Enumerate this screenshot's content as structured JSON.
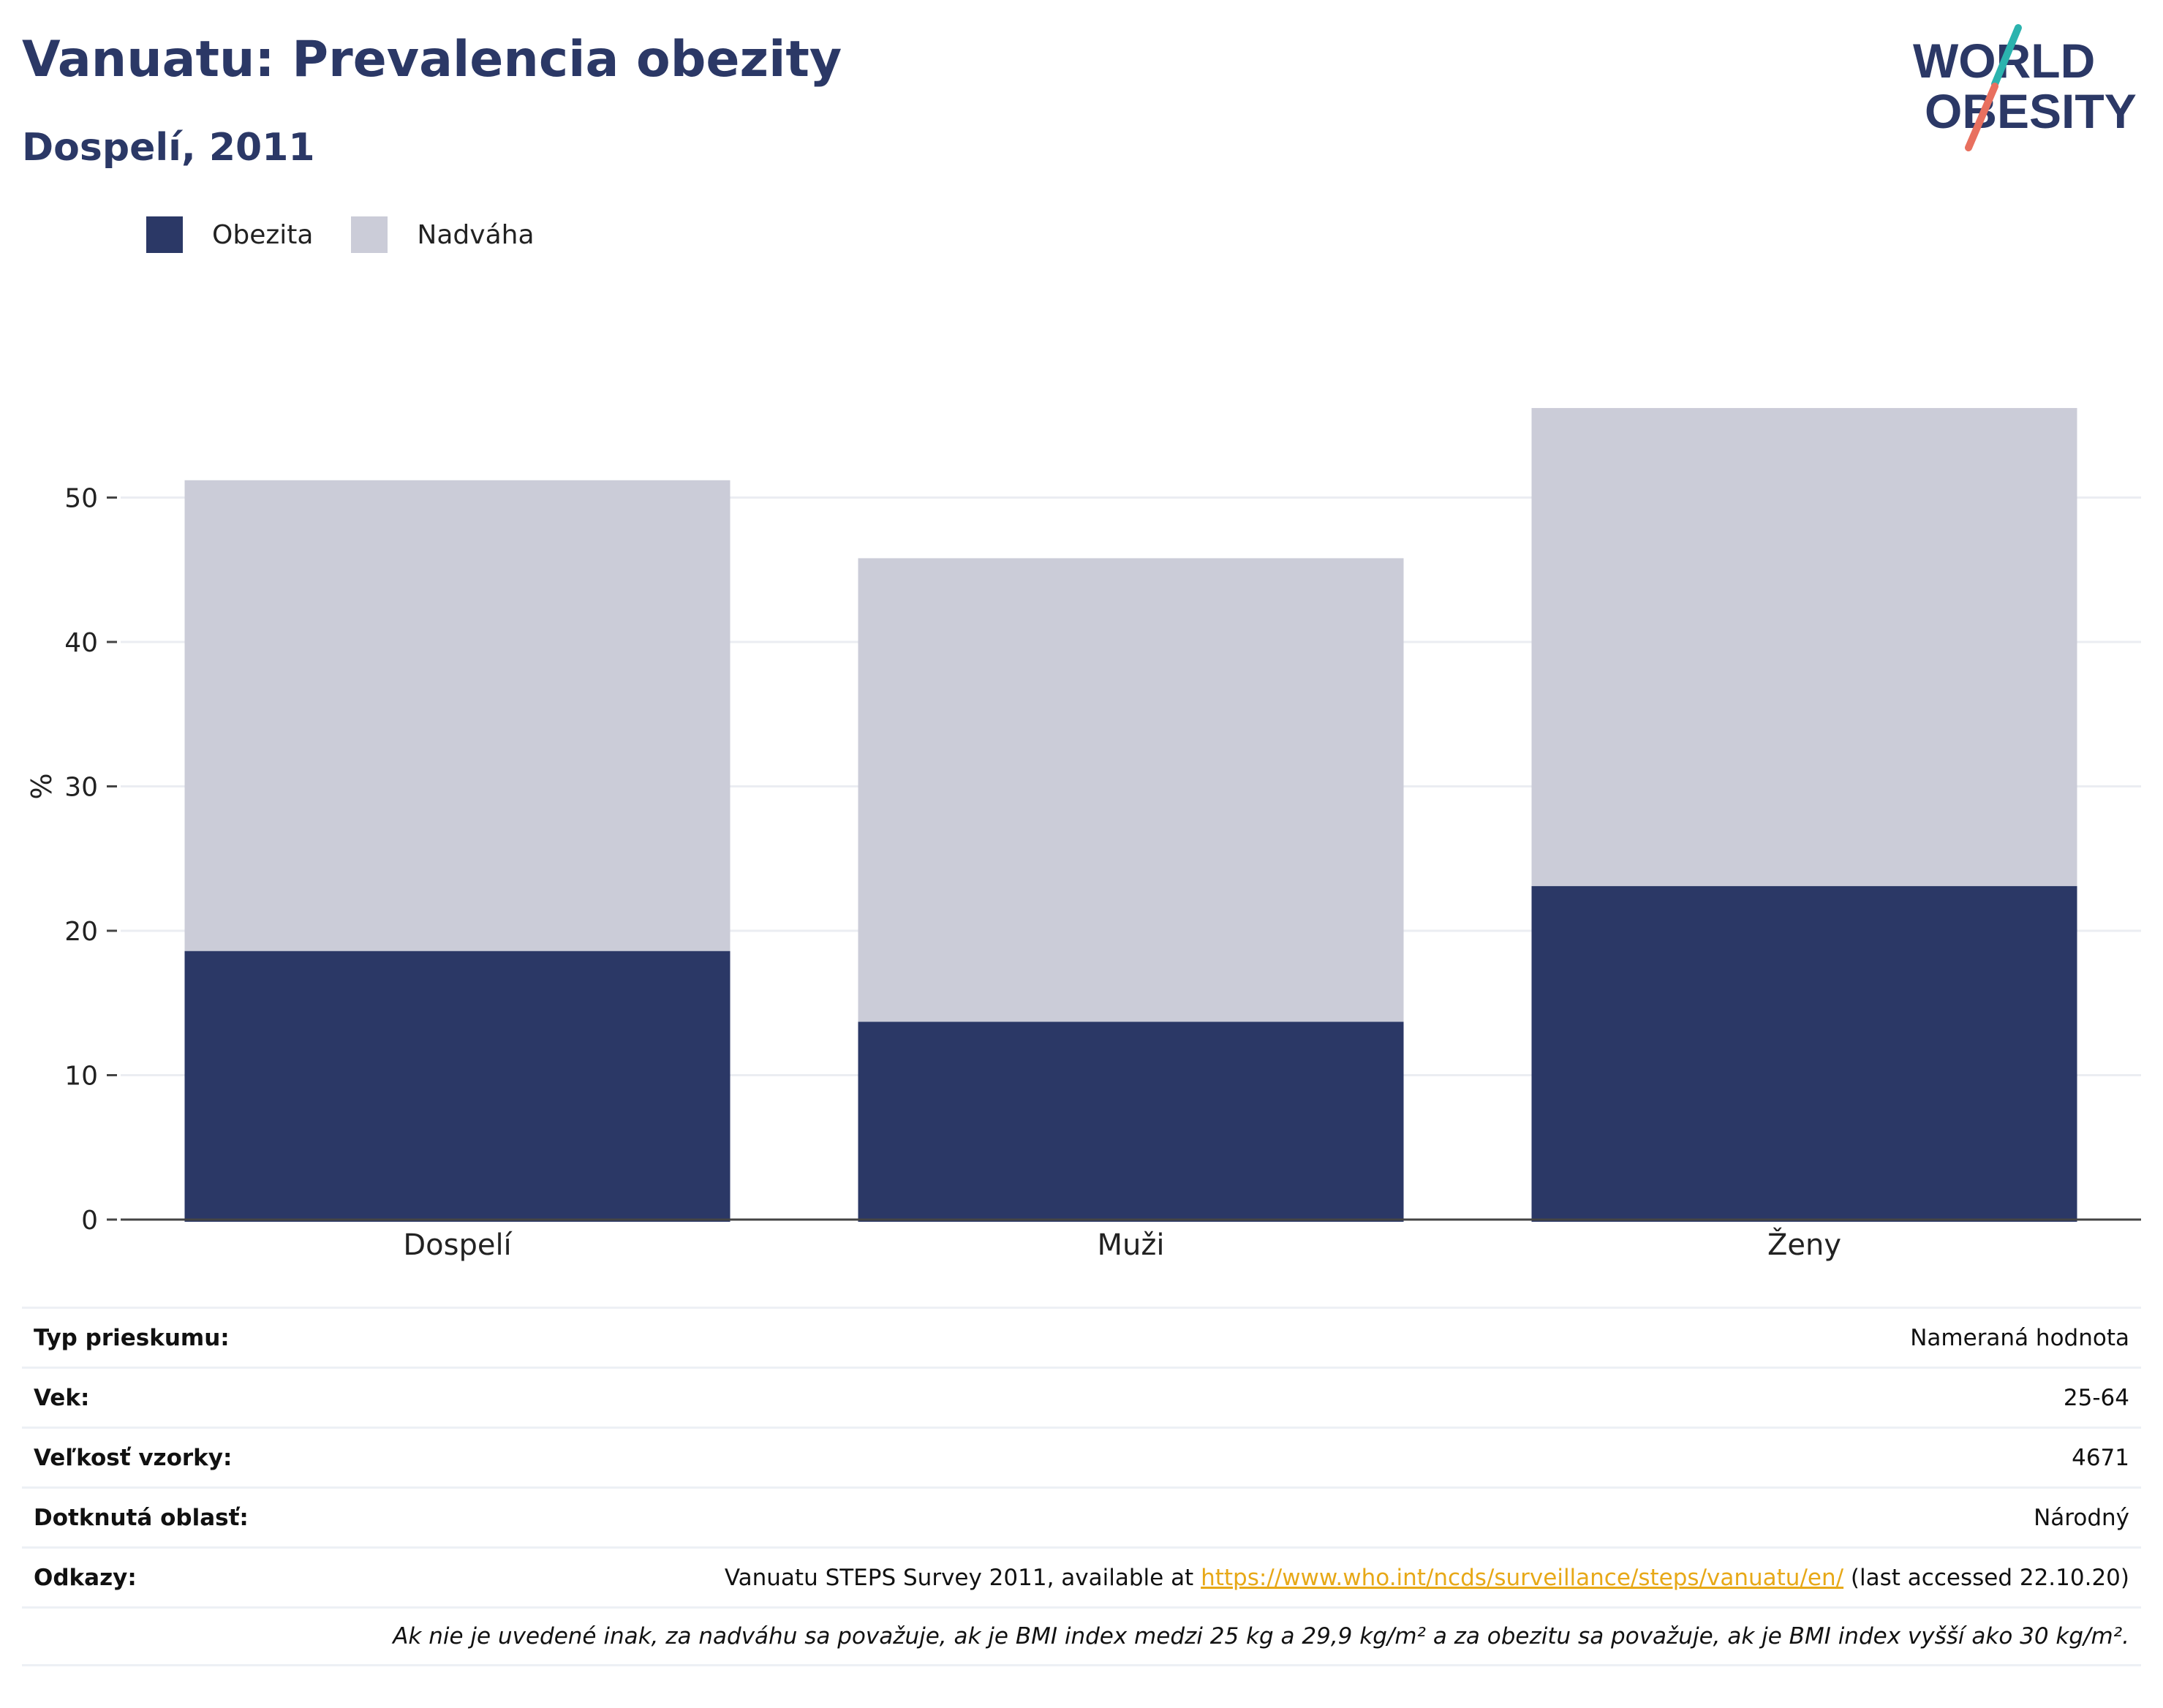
{
  "header": {
    "title": "Vanuatu: Prevalencia obezity",
    "subtitle": "Dospelí, 2011"
  },
  "logo": {
    "line1": "WORLD",
    "line2": "OBESITY",
    "colors": {
      "text": "#2b3866",
      "slash_top": "#2bb3ae",
      "slash_bottom": "#e8705f"
    }
  },
  "legend": [
    {
      "label": "Obezita",
      "color": "#2b3866"
    },
    {
      "label": "Nadváha",
      "color": "#cbccd8"
    }
  ],
  "chart_data": {
    "type": "bar",
    "stacked": true,
    "categories": [
      "Dospelí",
      "Muži",
      "Ženy"
    ],
    "series": [
      {
        "name": "Obezita",
        "color": "#2b3866",
        "values": [
          18.6,
          13.7,
          23.1
        ]
      },
      {
        "name": "Nadváha",
        "color": "#cbccd8",
        "values": [
          32.6,
          32.1,
          33.1
        ]
      }
    ],
    "ylabel": "%",
    "ylim": [
      0,
      60
    ],
    "yticks": [
      0,
      10,
      20,
      30,
      40,
      50
    ],
    "grid": true,
    "legend_position": "top-left"
  },
  "info": {
    "survey_type_label": "Typ prieskumu:",
    "survey_type_value": "Nameraná hodnota",
    "age_label": "Vek:",
    "age_value": "25-64",
    "sample_label": "Veľkosť vzorky:",
    "sample_value": "4671",
    "area_label": "Dotknutá oblasť:",
    "area_value": "Národný",
    "refs_label": "Odkazy:",
    "refs_prefix": "Vanuatu STEPS Survey 2011, available at ",
    "refs_link": "https://www.who.int/ncds/surveillance/steps/vanuatu/en/",
    "refs_suffix": " (last accessed 22.10.20)",
    "note": "Ak nie je uvedené inak, za nadváhu sa považuje, ak je BMI index medzi 25 kg a 29,9 kg/m² a za obezitu sa považuje, ak je BMI index vyšší ako 30 kg/m²."
  }
}
